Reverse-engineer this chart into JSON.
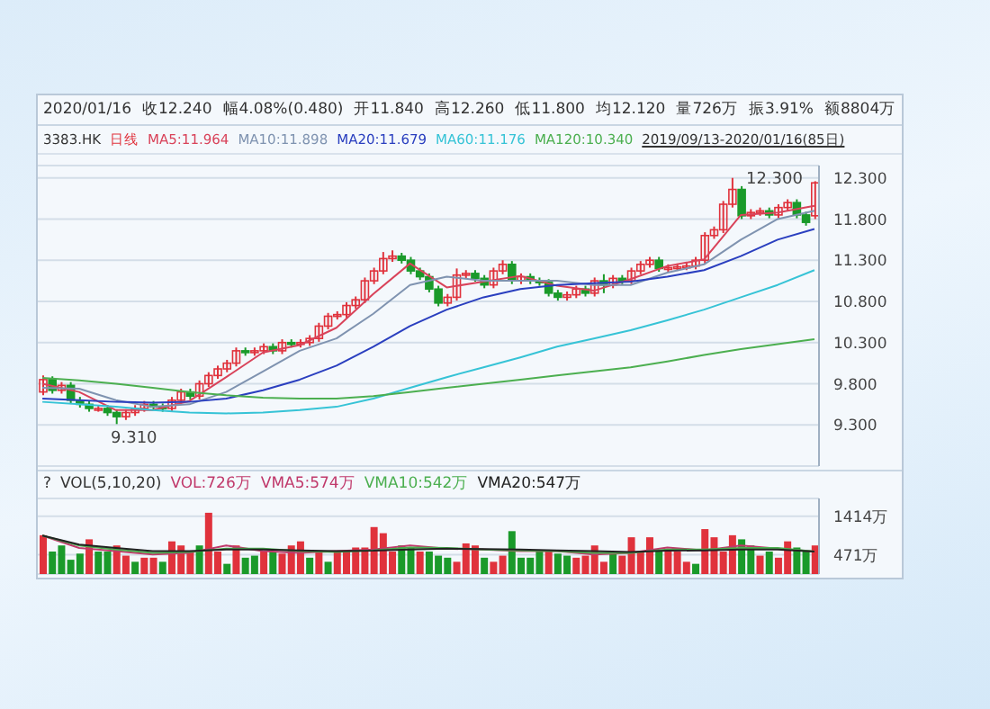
{
  "chart_data": [
    {
      "type": "candlestick",
      "title": "2020/01/16",
      "subtitle": "3383.HK",
      "annotations": [
        "收12.240",
        "幅4.08%(0.480)",
        "开11.840",
        "高12.260",
        "低11.800",
        "均12.120",
        "量726万",
        "振3.91%",
        "额8804万",
        "日线",
        "2019/09/13-2020/01/16(85日)",
        "12.300",
        "9.310"
      ],
      "categories": [
        null,
        null,
        null,
        null,
        null,
        null,
        null,
        null,
        null,
        null,
        null,
        null,
        null,
        null,
        null,
        null,
        null,
        null,
        null,
        null,
        null,
        null,
        null,
        null,
        null,
        null,
        null,
        null,
        null,
        null,
        null,
        null,
        null,
        null,
        null,
        null,
        null,
        null,
        null,
        null,
        null,
        null,
        null,
        null,
        null,
        null,
        null,
        null,
        null,
        null,
        null,
        null,
        null,
        null,
        null,
        null,
        null,
        null,
        null,
        null,
        null,
        null,
        null,
        null,
        null,
        null,
        null,
        null,
        null,
        null,
        null,
        null,
        null,
        null,
        null,
        null,
        null,
        null,
        null,
        null,
        null,
        null,
        null,
        null,
        null
      ],
      "ohlc": [
        [
          9.7,
          9.9,
          9.66,
          9.85
        ],
        [
          9.85,
          9.89,
          9.68,
          9.72
        ],
        [
          9.72,
          9.82,
          9.68,
          9.78
        ],
        [
          9.78,
          9.82,
          9.56,
          9.6
        ],
        [
          9.6,
          9.64,
          9.51,
          9.55
        ],
        [
          9.55,
          9.59,
          9.46,
          9.5
        ],
        [
          9.5,
          9.54,
          9.46,
          9.5
        ],
        [
          9.5,
          9.54,
          9.41,
          9.45
        ],
        [
          9.45,
          9.49,
          9.31,
          9.4
        ],
        [
          9.4,
          9.49,
          9.36,
          9.45
        ],
        [
          9.45,
          9.54,
          9.41,
          9.5
        ],
        [
          9.5,
          9.59,
          9.46,
          9.55
        ],
        [
          9.55,
          9.59,
          9.48,
          9.52
        ],
        [
          9.52,
          9.56,
          9.46,
          9.5
        ],
        [
          9.5,
          9.64,
          9.46,
          9.6
        ],
        [
          9.6,
          9.74,
          9.56,
          9.7
        ],
        [
          9.7,
          9.74,
          9.61,
          9.65
        ],
        [
          9.65,
          9.84,
          9.61,
          9.8
        ],
        [
          9.8,
          9.94,
          9.76,
          9.9
        ],
        [
          9.9,
          10.02,
          9.86,
          9.98
        ],
        [
          9.98,
          10.09,
          9.94,
          10.05
        ],
        [
          10.05,
          10.24,
          10.01,
          10.2
        ],
        [
          10.2,
          10.24,
          10.14,
          10.18
        ],
        [
          10.18,
          10.24,
          10.14,
          10.2
        ],
        [
          10.2,
          10.29,
          10.16,
          10.25
        ],
        [
          10.25,
          10.29,
          10.16,
          10.2
        ],
        [
          10.2,
          10.34,
          10.16,
          10.3
        ],
        [
          10.3,
          10.34,
          10.24,
          10.28
        ],
        [
          10.28,
          10.34,
          10.24,
          10.3
        ],
        [
          10.3,
          10.39,
          10.26,
          10.35
        ],
        [
          10.35,
          10.54,
          10.31,
          10.5
        ],
        [
          10.5,
          10.66,
          10.46,
          10.62
        ],
        [
          10.62,
          10.68,
          10.58,
          10.64
        ],
        [
          10.64,
          10.79,
          10.6,
          10.75
        ],
        [
          10.75,
          10.86,
          10.71,
          10.82
        ],
        [
          10.82,
          11.09,
          10.78,
          11.05
        ],
        [
          11.05,
          11.21,
          11.01,
          11.17
        ],
        [
          11.17,
          11.4,
          11.13,
          11.32
        ],
        [
          11.32,
          11.42,
          11.28,
          11.35
        ],
        [
          11.35,
          11.39,
          11.26,
          11.3
        ],
        [
          11.3,
          11.34,
          11.13,
          11.17
        ],
        [
          11.17,
          11.21,
          11.06,
          11.1
        ],
        [
          11.1,
          11.14,
          10.91,
          10.95
        ],
        [
          10.95,
          10.99,
          10.74,
          10.78
        ],
        [
          10.78,
          10.89,
          10.74,
          10.85
        ],
        [
          10.85,
          11.2,
          10.81,
          11.12
        ],
        [
          11.12,
          11.18,
          11.08,
          11.14
        ],
        [
          11.14,
          11.18,
          11.04,
          11.08
        ],
        [
          11.08,
          11.12,
          10.96,
          11.0
        ],
        [
          11.0,
          11.21,
          10.96,
          11.17
        ],
        [
          11.17,
          11.3,
          11.13,
          11.25
        ],
        [
          11.25,
          11.29,
          11.01,
          11.05
        ],
        [
          11.05,
          11.14,
          11.01,
          11.1
        ],
        [
          11.1,
          11.14,
          11.01,
          11.05
        ],
        [
          11.05,
          11.09,
          10.99,
          11.03
        ],
        [
          11.03,
          11.07,
          10.86,
          10.9
        ],
        [
          10.9,
          10.94,
          10.81,
          10.85
        ],
        [
          10.85,
          10.92,
          10.81,
          10.88
        ],
        [
          10.88,
          10.99,
          10.84,
          10.95
        ],
        [
          10.95,
          10.99,
          10.86,
          10.9
        ],
        [
          10.9,
          11.09,
          10.86,
          11.05
        ],
        [
          11.05,
          11.13,
          10.9,
          11.0
        ],
        [
          11.0,
          11.12,
          10.96,
          11.08
        ],
        [
          11.08,
          11.12,
          11.01,
          11.05
        ],
        [
          11.05,
          11.21,
          11.01,
          11.17
        ],
        [
          11.17,
          11.29,
          11.13,
          11.25
        ],
        [
          11.25,
          11.34,
          11.21,
          11.3
        ],
        [
          11.3,
          11.34,
          11.16,
          11.2
        ],
        [
          11.2,
          11.25,
          11.16,
          11.21
        ],
        [
          11.21,
          11.26,
          11.17,
          11.22
        ],
        [
          11.22,
          11.27,
          11.18,
          11.23
        ],
        [
          11.23,
          11.34,
          11.19,
          11.3
        ],
        [
          11.3,
          11.64,
          11.26,
          11.6
        ],
        [
          11.6,
          11.71,
          11.56,
          11.67
        ],
        [
          11.67,
          12.02,
          11.63,
          11.98
        ],
        [
          11.98,
          12.3,
          11.94,
          12.16
        ],
        [
          12.16,
          12.2,
          11.8,
          11.84
        ],
        [
          11.84,
          11.92,
          11.8,
          11.88
        ],
        [
          11.88,
          11.94,
          11.84,
          11.9
        ],
        [
          11.9,
          11.94,
          11.81,
          11.85
        ],
        [
          11.85,
          11.98,
          11.81,
          11.94
        ],
        [
          11.94,
          12.04,
          11.9,
          12.0
        ],
        [
          12.0,
          12.04,
          11.81,
          11.85
        ],
        [
          11.85,
          11.89,
          11.72,
          11.76
        ],
        [
          11.84,
          12.26,
          11.8,
          12.24
        ]
      ],
      "series": [
        {
          "type": "line",
          "name": "MA5:11.964",
          "color": "#d9435a",
          "values": [
            9.8,
            null,
            null,
            null,
            9.7,
            null,
            null,
            null,
            9.48,
            null,
            null,
            null,
            9.48,
            null,
            null,
            null,
            9.59,
            null,
            null,
            null,
            9.88,
            null,
            null,
            null,
            10.18,
            null,
            null,
            null,
            10.27,
            null,
            null,
            null,
            10.48,
            null,
            null,
            null,
            10.89,
            null,
            null,
            null,
            11.26,
            null,
            null,
            null,
            10.97,
            null,
            null,
            null,
            11.04,
            null,
            null,
            null,
            11.11,
            null,
            null,
            null,
            10.99,
            null,
            null,
            null,
            10.93,
            null,
            null,
            null,
            11.07,
            null,
            null,
            null,
            11.23,
            null,
            null,
            null,
            11.31,
            null,
            null,
            null,
            11.85,
            null,
            null,
            null,
            11.88,
            null,
            null,
            null,
            11.96
          ]
        },
        {
          "type": "line",
          "name": "MA10:11.898",
          "color": "#7f93b0",
          "values": [
            9.75,
            null,
            null,
            null,
            9.74,
            null,
            null,
            null,
            9.6,
            null,
            null,
            null,
            9.52,
            null,
            null,
            null,
            9.55,
            null,
            null,
            null,
            9.7,
            null,
            null,
            null,
            9.95,
            null,
            null,
            null,
            10.2,
            null,
            null,
            null,
            10.35,
            null,
            null,
            null,
            10.65,
            null,
            null,
            null,
            11.0,
            null,
            null,
            null,
            11.1,
            null,
            null,
            null,
            11.05,
            null,
            null,
            null,
            11.05,
            null,
            null,
            null,
            11.05,
            null,
            null,
            null,
            11.0,
            null,
            null,
            null,
            11.0,
            null,
            null,
            null,
            11.15,
            null,
            null,
            null,
            11.25,
            null,
            null,
            null,
            11.55,
            null,
            null,
            null,
            11.8,
            null,
            null,
            null,
            11.9
          ]
        },
        {
          "type": "line",
          "name": "MA20:11.679",
          "color": "#2a3fbf",
          "values": [
            9.62,
            null,
            null,
            null,
            9.6,
            null,
            null,
            null,
            9.58,
            null,
            null,
            null,
            9.57,
            null,
            null,
            null,
            9.58,
            null,
            null,
            null,
            9.62,
            null,
            null,
            null,
            9.72,
            null,
            null,
            null,
            9.85,
            null,
            null,
            null,
            10.02,
            null,
            null,
            null,
            10.25,
            null,
            null,
            null,
            10.5,
            null,
            null,
            null,
            10.7,
            null,
            null,
            null,
            10.85,
            null,
            null,
            null,
            10.95,
            null,
            null,
            null,
            11.0,
            null,
            null,
            null,
            11.02,
            null,
            null,
            null,
            11.04,
            null,
            null,
            null,
            11.1,
            null,
            null,
            null,
            11.18,
            null,
            null,
            null,
            11.35,
            null,
            null,
            null,
            11.55,
            null,
            null,
            null,
            11.68
          ]
        },
        {
          "type": "line",
          "name": "MA60:11.176",
          "color": "#36c3d6",
          "values": [
            9.58,
            null,
            null,
            null,
            9.55,
            null,
            null,
            null,
            9.52,
            null,
            null,
            null,
            9.48,
            null,
            null,
            null,
            9.45,
            null,
            null,
            null,
            9.44,
            null,
            null,
            null,
            9.45,
            null,
            null,
            null,
            9.48,
            null,
            null,
            null,
            9.52,
            null,
            null,
            null,
            9.62,
            null,
            null,
            null,
            9.75,
            null,
            null,
            null,
            9.88,
            null,
            null,
            null,
            10.0,
            null,
            null,
            null,
            10.12,
            null,
            null,
            null,
            10.25,
            null,
            null,
            null,
            10.35,
            null,
            null,
            null,
            10.45,
            null,
            null,
            null,
            10.57,
            null,
            null,
            null,
            10.7,
            null,
            null,
            null,
            10.85,
            null,
            null,
            null,
            11.0,
            null,
            null,
            null,
            11.18
          ]
        },
        {
          "type": "line",
          "name": "MA120:10.340",
          "color": "#4caf50",
          "values": [
            9.87,
            null,
            null,
            null,
            9.84,
            null,
            null,
            null,
            9.8,
            null,
            null,
            null,
            9.75,
            null,
            null,
            null,
            9.7,
            null,
            null,
            null,
            9.66,
            null,
            null,
            null,
            9.63,
            null,
            null,
            null,
            9.62,
            null,
            null,
            null,
            9.62,
            null,
            null,
            null,
            9.65,
            null,
            null,
            null,
            9.7,
            null,
            null,
            null,
            9.75,
            null,
            null,
            null,
            9.8,
            null,
            null,
            null,
            9.85,
            null,
            null,
            null,
            9.9,
            null,
            null,
            null,
            9.95,
            null,
            null,
            null,
            10.0,
            null,
            null,
            null,
            10.07,
            null,
            null,
            null,
            10.15,
            null,
            null,
            null,
            10.22,
            null,
            null,
            null,
            10.28,
            null,
            null,
            null,
            10.34
          ]
        }
      ],
      "ylim": [
        8.8,
        12.45
      ],
      "yticks": [
        {
          "value": 12.3,
          "label": "12.300"
        },
        {
          "value": 11.8,
          "label": "11.800"
        },
        {
          "value": 11.3,
          "label": "11.300"
        },
        {
          "value": 10.8,
          "label": "10.800"
        },
        {
          "value": 10.3,
          "label": "10.300"
        },
        {
          "value": 9.8,
          "label": "9.800"
        },
        {
          "value": 9.3,
          "label": "9.300"
        }
      ],
      "grid": "y",
      "tick_labels": "y"
    },
    {
      "type": "bar",
      "annotations": [
        "?",
        "VOL(5,10,20)",
        "VOL:726万"
      ],
      "categories": [
        null,
        null,
        null,
        null,
        null,
        null,
        null,
        null,
        null,
        null,
        null,
        null,
        null,
        null,
        null,
        null,
        null,
        null,
        null,
        null,
        null,
        null,
        null,
        null,
        null,
        null,
        null,
        null,
        null,
        null,
        null,
        null,
        null,
        null,
        null,
        null,
        null,
        null,
        null,
        null,
        null,
        null,
        null,
        null,
        null,
        null,
        null,
        null,
        null,
        null,
        null,
        null,
        null,
        null,
        null,
        null,
        null,
        null,
        null,
        null,
        null,
        null,
        null,
        null,
        null,
        null,
        null,
        null,
        null,
        null,
        null,
        null,
        null,
        null,
        null,
        null,
        null,
        null,
        null,
        null,
        null,
        null,
        null,
        null,
        null
      ],
      "values": [
        950,
        550,
        700,
        350,
        500,
        850,
        550,
        550,
        700,
        450,
        300,
        400,
        400,
        300,
        800,
        700,
        550,
        700,
        1500,
        550,
        250,
        700,
        400,
        450,
        550,
        550,
        500,
        700,
        800,
        400,
        550,
        300,
        550,
        550,
        650,
        650,
        1150,
        1000,
        550,
        700,
        650,
        550,
        550,
        450,
        400,
        300,
        750,
        700,
        400,
        300,
        450,
        1050,
        400,
        400,
        550,
        550,
        500,
        450,
        400,
        450,
        700,
        300,
        500,
        450,
        900,
        550,
        900,
        550,
        550,
        550,
        300,
        250,
        1100,
        900,
        550,
        950,
        850,
        700,
        450,
        550,
        400,
        800,
        650,
        550,
        700
      ],
      "colors": [
        "#e0323c",
        "#1a9a2a",
        "#1a9a2a",
        "#1a9a2a",
        "#1a9a2a",
        "#e0323c",
        "#1a9a2a",
        "#1a9a2a",
        "#e0323c",
        "#e0323c",
        "#1a9a2a",
        "#e0323c",
        "#e0323c",
        "#1a9a2a",
        "#e0323c",
        "#e0323c",
        "#e0323c",
        "#1a9a2a",
        "#e0323c",
        "#e0323c",
        "#1a9a2a",
        "#e0323c",
        "#1a9a2a",
        "#1a9a2a",
        "#e0323c",
        "#1a9a2a",
        "#e0323c",
        "#e0323c",
        "#e0323c",
        "#1a9a2a",
        "#e0323c",
        "#1a9a2a",
        "#e0323c",
        "#e0323c",
        "#e0323c",
        "#e0323c",
        "#e0323c",
        "#e0323c",
        "#e0323c",
        "#1a9a2a",
        "#1a9a2a",
        "#e0323c",
        "#1a9a2a",
        "#1a9a2a",
        "#1a9a2a",
        "#e0323c",
        "#e0323c",
        "#e0323c",
        "#1a9a2a",
        "#e0323c",
        "#e0323c",
        "#1a9a2a",
        "#1a9a2a",
        "#1a9a2a",
        "#1a9a2a",
        "#e0323c",
        "#1a9a2a",
        "#1a9a2a",
        "#e0323c",
        "#e0323c",
        "#e0323c",
        "#e0323c",
        "#1a9a2a",
        "#e0323c",
        "#e0323c",
        "#e0323c",
        "#e0323c",
        "#1a9a2a",
        "#e0323c",
        "#e0323c",
        "#e0323c",
        "#1a9a2a",
        "#e0323c",
        "#e0323c",
        "#e0323c",
        "#e0323c",
        "#1a9a2a",
        "#1a9a2a",
        "#e0323c",
        "#1a9a2a",
        "#e0323c",
        "#e0323c",
        "#1a9a2a",
        "#1a9a2a",
        "#e0323c"
      ],
      "series": [
        {
          "type": "line",
          "name": "VMA5:574万",
          "color": "#c0396b",
          "values": [
            940,
            null,
            null,
            null,
            640,
            null,
            null,
            null,
            560,
            null,
            null,
            null,
            480,
            null,
            null,
            null,
            520,
            null,
            null,
            null,
            700,
            null,
            null,
            null,
            560,
            null,
            null,
            null,
            520,
            null,
            null,
            null,
            560,
            null,
            null,
            null,
            600,
            null,
            null,
            null,
            700,
            null,
            null,
            null,
            620,
            null,
            null,
            null,
            600,
            null,
            null,
            null,
            560,
            null,
            null,
            null,
            560,
            null,
            null,
            null,
            480,
            null,
            null,
            null,
            520,
            null,
            null,
            null,
            650,
            null,
            null,
            null,
            580,
            null,
            null,
            null,
            700,
            null,
            null,
            null,
            620,
            null,
            null,
            null,
            550
          ]
        },
        {
          "type": "line",
          "name": "VMA10:542万",
          "color": "#4caf50",
          "values": [
            940,
            null,
            null,
            null,
            700,
            null,
            null,
            null,
            600,
            null,
            null,
            null,
            520,
            null,
            null,
            null,
            540,
            null,
            null,
            null,
            620,
            null,
            null,
            null,
            620,
            null,
            null,
            null,
            560,
            null,
            null,
            null,
            540,
            null,
            null,
            null,
            580,
            null,
            null,
            null,
            650,
            null,
            null,
            null,
            640,
            null,
            null,
            null,
            600,
            null,
            null,
            null,
            580,
            null,
            null,
            null,
            560,
            null,
            null,
            null,
            520,
            null,
            null,
            null,
            520,
            null,
            null,
            null,
            600,
            null,
            null,
            null,
            600,
            null,
            null,
            null,
            640,
            null,
            null,
            null,
            640,
            null,
            null,
            null,
            550
          ]
        },
        {
          "type": "line",
          "name": "VMA20:547万",
          "color": "#222222",
          "values": [
            940,
            null,
            null,
            null,
            720,
            null,
            null,
            null,
            640,
            null,
            null,
            null,
            560,
            null,
            null,
            null,
            560,
            null,
            null,
            null,
            600,
            null,
            null,
            null,
            600,
            null,
            null,
            null,
            580,
            null,
            null,
            null,
            560,
            null,
            null,
            null,
            570,
            null,
            null,
            null,
            600,
            null,
            null,
            null,
            620,
            null,
            null,
            null,
            610,
            null,
            null,
            null,
            600,
            null,
            null,
            null,
            580,
            null,
            null,
            null,
            560,
            null,
            null,
            null,
            540,
            null,
            null,
            null,
            570,
            null,
            null,
            null,
            580,
            null,
            null,
            null,
            600,
            null,
            null,
            null,
            600,
            null,
            null,
            null,
            550
          ]
        }
      ],
      "ylim": [
        0,
        1850
      ],
      "yticks": [
        {
          "value": 471,
          "label": "471万"
        },
        {
          "value": 1414,
          "label": "1414万"
        }
      ],
      "grid": "y",
      "tick_labels": "y"
    }
  ]
}
